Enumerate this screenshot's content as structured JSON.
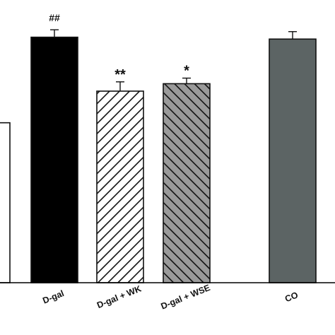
{
  "chart_data": {
    "type": "bar",
    "title": "",
    "xlabel": "",
    "ylabel": "",
    "categories": [
      "",
      "D-gal",
      "D-gal + WK",
      "D-gal + WSE",
      "CO"
    ],
    "values": [
      43,
      66,
      51.5,
      53.5,
      65.5
    ],
    "errors": [
      0,
      2,
      2.5,
      1.5,
      2
    ],
    "annotations": [
      "",
      "##",
      "**",
      "*",
      ""
    ],
    "fills": [
      "white",
      "solid",
      "hatch-up",
      "hatch-down",
      "solid"
    ],
    "colors": [
      "#ffffff",
      "#000000",
      "#ffffff",
      "#9a9a9a",
      "#5c6464"
    ],
    "ylim": [
      0,
      76
    ],
    "grid": false
  }
}
